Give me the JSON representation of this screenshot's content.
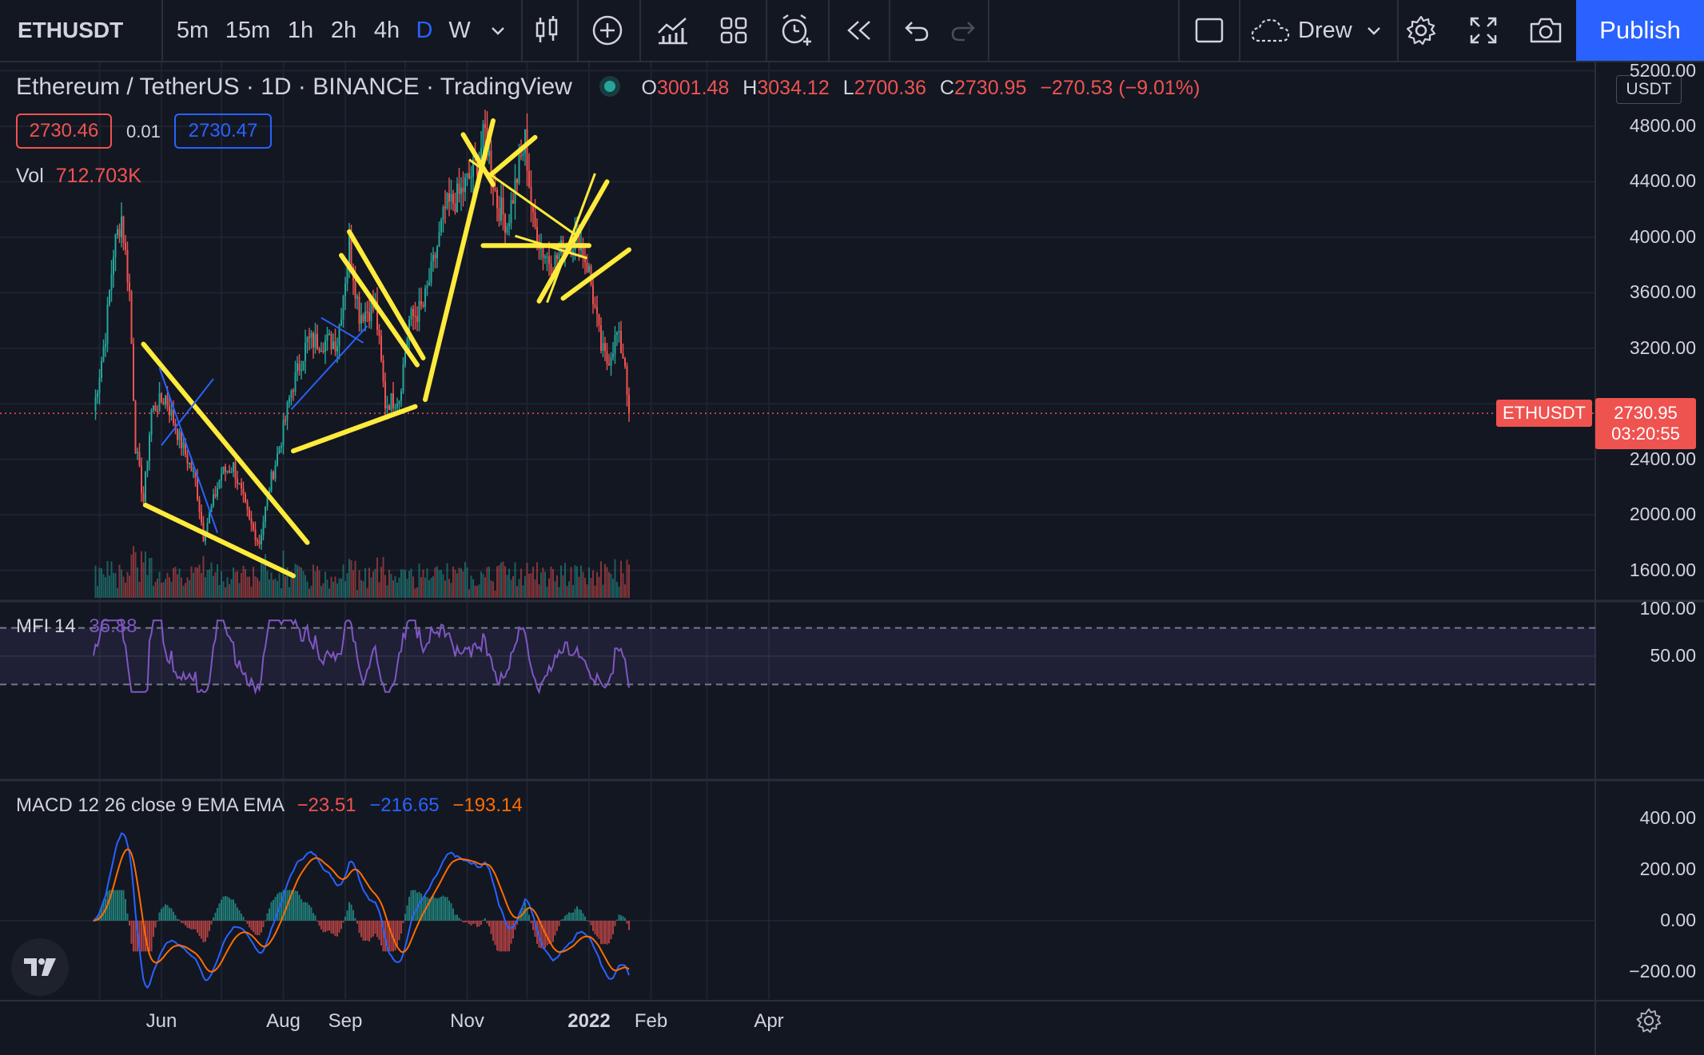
{
  "toolbar": {
    "symbol": "ETHUSDT",
    "intervals": [
      "5m",
      "15m",
      "1h",
      "2h",
      "4h",
      "D",
      "W"
    ],
    "active_interval": "D",
    "layout_name": "Drew",
    "publish_label": "Publish",
    "icons": [
      "chevron-down-icon",
      "candles-icon",
      "plus-circle-icon",
      "indicators-icon",
      "templates-icon",
      "alert-icon",
      "replay-icon",
      "undo-icon",
      "redo-icon",
      "layout-icon",
      "cloud-icon",
      "settings-icon",
      "fullscreen-icon",
      "camera-icon"
    ]
  },
  "legend": {
    "title": "Ethereum / TetherUS · 1D · BINANCE · TradingView",
    "o_label": "O",
    "o_value": "3001.48",
    "h_label": "H",
    "h_value": "3034.12",
    "l_label": "L",
    "l_value": "2700.36",
    "c_label": "C",
    "c_value": "2730.95",
    "change": "−270.53 (−9.01%)",
    "bid": "2730.46",
    "spread": "0.01",
    "ask": "2730.47",
    "vol_label": "Vol",
    "vol_value": "712.703K"
  },
  "mfi": {
    "label": "MFI",
    "length": "14",
    "value": "36.88"
  },
  "macd": {
    "label": "MACD 12 26 close 9 EMA EMA",
    "hist": "−23.51",
    "macd": "−216.65",
    "signal": "−193.14"
  },
  "price_axis": {
    "currency": "USDT",
    "labels": [
      "5200.00",
      "4800.00",
      "4400.00",
      "4000.00",
      "3600.00",
      "3200.00",
      "2800.00",
      "2400.00",
      "2000.00",
      "1600.00"
    ],
    "current_symbol": "ETHUSDT",
    "current_price": "2730.95",
    "countdown": "03:20:55"
  },
  "mfi_axis": {
    "labels": [
      "100.00",
      "50.00"
    ]
  },
  "macd_axis": {
    "labels": [
      "400.00",
      "200.00",
      "0.00",
      "−200.00"
    ]
  },
  "time_axis": {
    "labels": [
      "Jun",
      "Aug",
      "Sep",
      "Nov",
      "2022",
      "Feb",
      "Apr"
    ]
  },
  "colors": {
    "background": "#131722",
    "up": "#26a69a",
    "down": "#ef5350",
    "drawing": "#ffeb3b",
    "mfi": "#7e57c2",
    "macd_line": "#2962ff",
    "signal_line": "#ff6d00",
    "accent": "#2962ff"
  },
  "chart_data": {
    "type": "candlestick",
    "symbol": "ETHUSDT",
    "timeframe": "1D",
    "y_range": [
      1500,
      5250
    ],
    "close_points": [
      {
        "date": "2021-04-28",
        "close": 2750
      },
      {
        "date": "2021-05-04",
        "close": 3300
      },
      {
        "date": "2021-05-08",
        "close": 3900
      },
      {
        "date": "2021-05-12",
        "close": 4150
      },
      {
        "date": "2021-05-16",
        "close": 3600
      },
      {
        "date": "2021-05-19",
        "close": 2500
      },
      {
        "date": "2021-05-23",
        "close": 2100
      },
      {
        "date": "2021-05-27",
        "close": 2750
      },
      {
        "date": "2021-06-03",
        "close": 2850
      },
      {
        "date": "2021-06-10",
        "close": 2550
      },
      {
        "date": "2021-06-18",
        "close": 2250
      },
      {
        "date": "2021-06-22",
        "close": 1850
      },
      {
        "date": "2021-07-01",
        "close": 2300
      },
      {
        "date": "2021-07-07",
        "close": 2350
      },
      {
        "date": "2021-07-15",
        "close": 1950
      },
      {
        "date": "2021-07-20",
        "close": 1800
      },
      {
        "date": "2021-07-25",
        "close": 2200
      },
      {
        "date": "2021-07-31",
        "close": 2550
      },
      {
        "date": "2021-08-05",
        "close": 2900
      },
      {
        "date": "2021-08-13",
        "close": 3250
      },
      {
        "date": "2021-08-20",
        "close": 3250
      },
      {
        "date": "2021-08-28",
        "close": 3250
      },
      {
        "date": "2021-09-03",
        "close": 3950
      },
      {
        "date": "2021-09-08",
        "close": 3450
      },
      {
        "date": "2021-09-16",
        "close": 3500
      },
      {
        "date": "2021-09-21",
        "close": 2800
      },
      {
        "date": "2021-09-28",
        "close": 2850
      },
      {
        "date": "2021-10-03",
        "close": 3400
      },
      {
        "date": "2021-10-10",
        "close": 3500
      },
      {
        "date": "2021-10-15",
        "close": 3800
      },
      {
        "date": "2021-10-21",
        "close": 4200
      },
      {
        "date": "2021-10-28",
        "close": 4300
      },
      {
        "date": "2021-11-05",
        "close": 4500
      },
      {
        "date": "2021-11-10",
        "close": 4750
      },
      {
        "date": "2021-11-16",
        "close": 4250
      },
      {
        "date": "2021-11-21",
        "close": 4100
      },
      {
        "date": "2021-11-30",
        "close": 4700
      },
      {
        "date": "2021-12-04",
        "close": 4100
      },
      {
        "date": "2021-12-09",
        "close": 3900
      },
      {
        "date": "2021-12-14",
        "close": 3800
      },
      {
        "date": "2021-12-20",
        "close": 3950
      },
      {
        "date": "2021-12-27",
        "close": 4000
      },
      {
        "date": "2022-01-01",
        "close": 3750
      },
      {
        "date": "2022-01-07",
        "close": 3200
      },
      {
        "date": "2022-01-10",
        "close": 3100
      },
      {
        "date": "2022-01-15",
        "close": 3300
      },
      {
        "date": "2022-01-19",
        "close": 3100
      },
      {
        "date": "2022-01-21",
        "close": 2730
      }
    ],
    "mfi_range": [
      0,
      100
    ],
    "mfi_bands": [
      20,
      80
    ],
    "macd_range": [
      -300,
      450
    ]
  }
}
